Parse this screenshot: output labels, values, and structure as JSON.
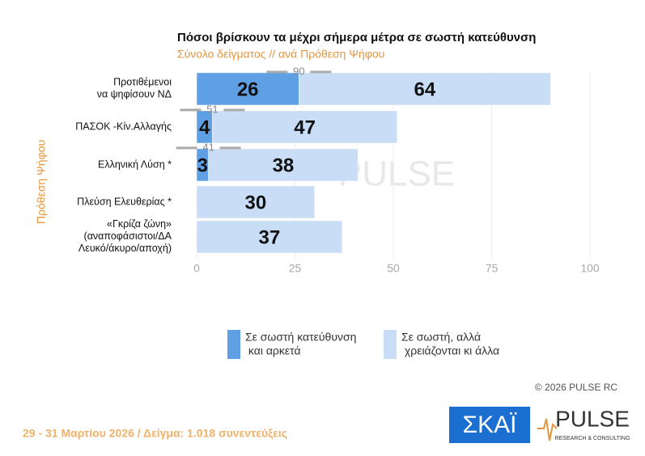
{
  "chart_data": {
    "type": "stacked-bar-horizontal",
    "title": "Πόσοι βρίσκουν τα μέχρι σήμερα μέτρα σε σωστή κατεύθυνση",
    "subtitle": "Σύνολο δείγματος // ανά Πρόθεση  Ψήφου",
    "y_label": "Πρόθεση  Ψήφου",
    "categories": [
      "Προτιθέμενοι\nνα ψηφίσουν ΝΔ",
      "ΠΑΣΟΚ -Κίν.Αλλαγής",
      "Ελληνική Λύση *",
      "Πλεύση Ελευθερίας *",
      "«Γκρίζα ζώνη»\n(αναποφάσιστοι/ΔΑ\nΛευκό/άκυρο/αποχή)"
    ],
    "series": [
      {
        "name": "Σε σωστή κατεύθυνση\nκαι αρκετά",
        "color": "#5f9fe3",
        "values": [
          26,
          4,
          3,
          null,
          null
        ]
      },
      {
        "name": "Σε σωστή, αλλά\nχρειάζονται κι άλλα",
        "color": "#c9def6",
        "values": [
          64,
          47,
          38,
          30,
          37
        ]
      }
    ],
    "totals": [
      90,
      51,
      41,
      null,
      null
    ],
    "xlim": [
      0,
      100
    ],
    "xticks": [
      0,
      25,
      50,
      75,
      100
    ],
    "grid": true
  },
  "watermark": "PULSE",
  "copyright": "©  2026  PULSE RC",
  "footer": "29 - 31  Μαρτίου 2026  /  Δείγμα:  1.018 συνεντεύξεις",
  "logos": {
    "skai": "ΣΚΑΪ",
    "pulse": "PULSE",
    "pulse_sub": "RESEARCH & CONSULTING"
  }
}
